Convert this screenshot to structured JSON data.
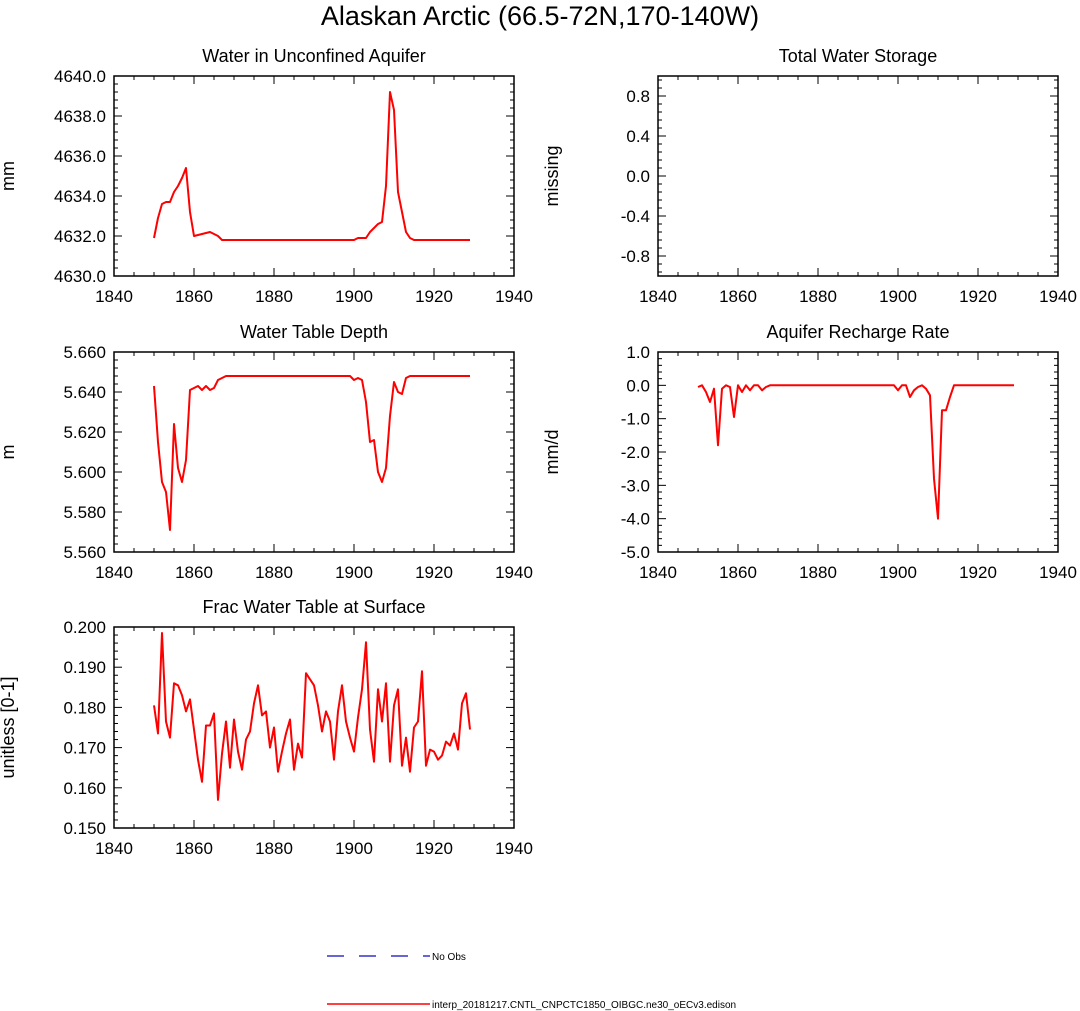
{
  "page_title": "Alaskan Arctic (66.5-72N,170-140W)",
  "legend": {
    "entries": [
      {
        "label": "No Obs",
        "color": "#3333cc",
        "style": "dashed"
      },
      {
        "label": "interp_20181217.CNTL_CNPCTC1850_OIBGC.ne30_oECv3.edison",
        "color": "#ff0000",
        "style": "solid"
      }
    ]
  },
  "chart_data": [
    {
      "type": "line",
      "title": "Water in Unconfined Aquifer",
      "ylabel": "mm",
      "xlim": [
        1840,
        1940
      ],
      "ylim": [
        4630.0,
        4640.0
      ],
      "xticks": [
        1840,
        1860,
        1880,
        1900,
        1920,
        1940
      ],
      "yticks": [
        "4630.0",
        "4632.0",
        "4634.0",
        "4636.0",
        "4638.0",
        "4640.0"
      ],
      "series": [
        {
          "color": "#ff0000",
          "x": [
            1850,
            1851,
            1852,
            1853,
            1854,
            1855,
            1856,
            1857,
            1858,
            1859,
            1860,
            1862,
            1864,
            1865,
            1866,
            1867,
            1870,
            1880,
            1890,
            1899,
            1900,
            1901,
            1902,
            1903,
            1904,
            1905,
            1906,
            1907,
            1908,
            1909,
            1910,
            1911,
            1912,
            1913,
            1914,
            1915,
            1920,
            1925,
            1929
          ],
          "y": [
            4631.9,
            4632.9,
            4633.6,
            4633.7,
            4633.7,
            4634.2,
            4634.5,
            4634.9,
            4635.4,
            4633.2,
            4632.0,
            4632.1,
            4632.2,
            4632.1,
            4632.0,
            4631.8,
            4631.8,
            4631.8,
            4631.8,
            4631.8,
            4631.8,
            4631.9,
            4631.9,
            4631.9,
            4632.2,
            4632.4,
            4632.6,
            4632.7,
            4634.5,
            4639.2,
            4638.3,
            4634.2,
            4633.2,
            4632.2,
            4631.9,
            4631.8,
            4631.8,
            4631.8,
            4631.8
          ]
        }
      ]
    },
    {
      "type": "line",
      "title": "Total Water Storage",
      "ylabel": "missing",
      "xlim": [
        1840,
        1940
      ],
      "ylim": [
        -1.0,
        1.0
      ],
      "xticks": [
        1840,
        1860,
        1880,
        1900,
        1920,
        1940
      ],
      "yticks": [
        "-0.8",
        "-0.4",
        "0.0",
        "0.4",
        "0.8"
      ],
      "series": []
    },
    {
      "type": "line",
      "title": "Water Table Depth",
      "ylabel": "m",
      "xlim": [
        1840,
        1940
      ],
      "ylim": [
        5.56,
        5.66
      ],
      "xticks": [
        1840,
        1860,
        1880,
        1900,
        1920,
        1940
      ],
      "yticks": [
        "5.560",
        "5.580",
        "5.600",
        "5.620",
        "5.640",
        "5.660"
      ],
      "series": [
        {
          "color": "#ff0000",
          "x": [
            1850,
            1851,
            1852,
            1853,
            1854,
            1855,
            1856,
            1857,
            1858,
            1859,
            1860,
            1861,
            1862,
            1863,
            1864,
            1865,
            1866,
            1867,
            1868,
            1870,
            1880,
            1890,
            1899,
            1900,
            1901,
            1902,
            1903,
            1904,
            1905,
            1906,
            1907,
            1908,
            1909,
            1910,
            1911,
            1912,
            1913,
            1914,
            1920,
            1929
          ],
          "y": [
            5.643,
            5.615,
            5.595,
            5.59,
            5.571,
            5.624,
            5.602,
            5.595,
            5.606,
            5.641,
            5.642,
            5.643,
            5.641,
            5.643,
            5.641,
            5.642,
            5.646,
            5.647,
            5.648,
            5.648,
            5.648,
            5.648,
            5.648,
            5.646,
            5.647,
            5.646,
            5.635,
            5.615,
            5.616,
            5.6,
            5.595,
            5.602,
            5.628,
            5.645,
            5.64,
            5.639,
            5.647,
            5.648,
            5.648,
            5.648
          ]
        }
      ]
    },
    {
      "type": "line",
      "title": "Aquifer Recharge Rate",
      "ylabel": "mm/d",
      "xlim": [
        1840,
        1940
      ],
      "ylim": [
        -5.0,
        1.0
      ],
      "xticks": [
        1840,
        1860,
        1880,
        1900,
        1920,
        1940
      ],
      "yticks": [
        "-5.0",
        "-4.0",
        "-3.0",
        "-2.0",
        "-1.0",
        "0.0",
        "1.0"
      ],
      "series": [
        {
          "color": "#ff0000",
          "x": [
            1850,
            1851,
            1852,
            1853,
            1854,
            1855,
            1856,
            1857,
            1858,
            1859,
            1860,
            1861,
            1862,
            1863,
            1864,
            1865,
            1866,
            1867,
            1868,
            1870,
            1880,
            1890,
            1899,
            1900,
            1901,
            1902,
            1903,
            1904,
            1905,
            1906,
            1907,
            1908,
            1909,
            1910,
            1911,
            1912,
            1913,
            1914,
            1915,
            1920,
            1929
          ],
          "y": [
            -0.05,
            0.0,
            -0.2,
            -0.5,
            -0.1,
            -1.8,
            -0.1,
            0.0,
            -0.05,
            -0.95,
            0.0,
            -0.2,
            0.0,
            -0.15,
            0.0,
            0.0,
            -0.15,
            -0.05,
            0.0,
            0.0,
            0.0,
            0.0,
            0.0,
            -0.15,
            0.0,
            0.0,
            -0.35,
            -0.15,
            -0.05,
            0.0,
            -0.1,
            -0.3,
            -2.8,
            -4.0,
            -0.75,
            -0.75,
            -0.35,
            0.0,
            0.0,
            0.0,
            0.0
          ]
        }
      ]
    },
    {
      "type": "line",
      "title": "Frac Water Table at Surface",
      "ylabel": "unitless [0-1]",
      "xlim": [
        1840,
        1940
      ],
      "ylim": [
        0.15,
        0.2
      ],
      "xticks": [
        1840,
        1860,
        1880,
        1900,
        1920,
        1940
      ],
      "yticks": [
        "0.150",
        "0.160",
        "0.170",
        "0.180",
        "0.190",
        "0.200"
      ],
      "series": [
        {
          "color": "#ff0000",
          "x": [
            1850,
            1851,
            1852,
            1853,
            1854,
            1855,
            1856,
            1857,
            1858,
            1859,
            1860,
            1861,
            1862,
            1863,
            1864,
            1865,
            1866,
            1867,
            1868,
            1869,
            1870,
            1871,
            1872,
            1873,
            1874,
            1875,
            1876,
            1877,
            1878,
            1879,
            1880,
            1881,
            1882,
            1883,
            1884,
            1885,
            1886,
            1887,
            1888,
            1889,
            1890,
            1891,
            1892,
            1893,
            1894,
            1895,
            1896,
            1897,
            1898,
            1899,
            1900,
            1901,
            1902,
            1903,
            1904,
            1905,
            1906,
            1907,
            1908,
            1909,
            1910,
            1911,
            1912,
            1913,
            1914,
            1915,
            1916,
            1917,
            1918,
            1919,
            1920,
            1921,
            1922,
            1923,
            1924,
            1925,
            1926,
            1927,
            1928,
            1929
          ],
          "y": [
            0.1805,
            0.1735,
            0.1985,
            0.1765,
            0.1725,
            0.186,
            0.1855,
            0.183,
            0.179,
            0.182,
            0.1745,
            0.167,
            0.1615,
            0.1755,
            0.1755,
            0.1785,
            0.157,
            0.1685,
            0.1765,
            0.165,
            0.177,
            0.169,
            0.1645,
            0.172,
            0.174,
            0.181,
            0.1855,
            0.178,
            0.179,
            0.17,
            0.175,
            0.164,
            0.169,
            0.1735,
            0.177,
            0.1645,
            0.171,
            0.1675,
            0.1885,
            0.187,
            0.1855,
            0.1805,
            0.174,
            0.179,
            0.1765,
            0.167,
            0.179,
            0.1855,
            0.1765,
            0.1725,
            0.169,
            0.1775,
            0.1845,
            0.1962,
            0.1745,
            0.1665,
            0.1845,
            0.1765,
            0.186,
            0.1665,
            0.1805,
            0.1845,
            0.1655,
            0.1725,
            0.164,
            0.175,
            0.1765,
            0.189,
            0.1655,
            0.1695,
            0.169,
            0.167,
            0.168,
            0.1715,
            0.1705,
            0.1735,
            0.1695,
            0.181,
            0.1835,
            0.1745
          ]
        }
      ]
    }
  ]
}
